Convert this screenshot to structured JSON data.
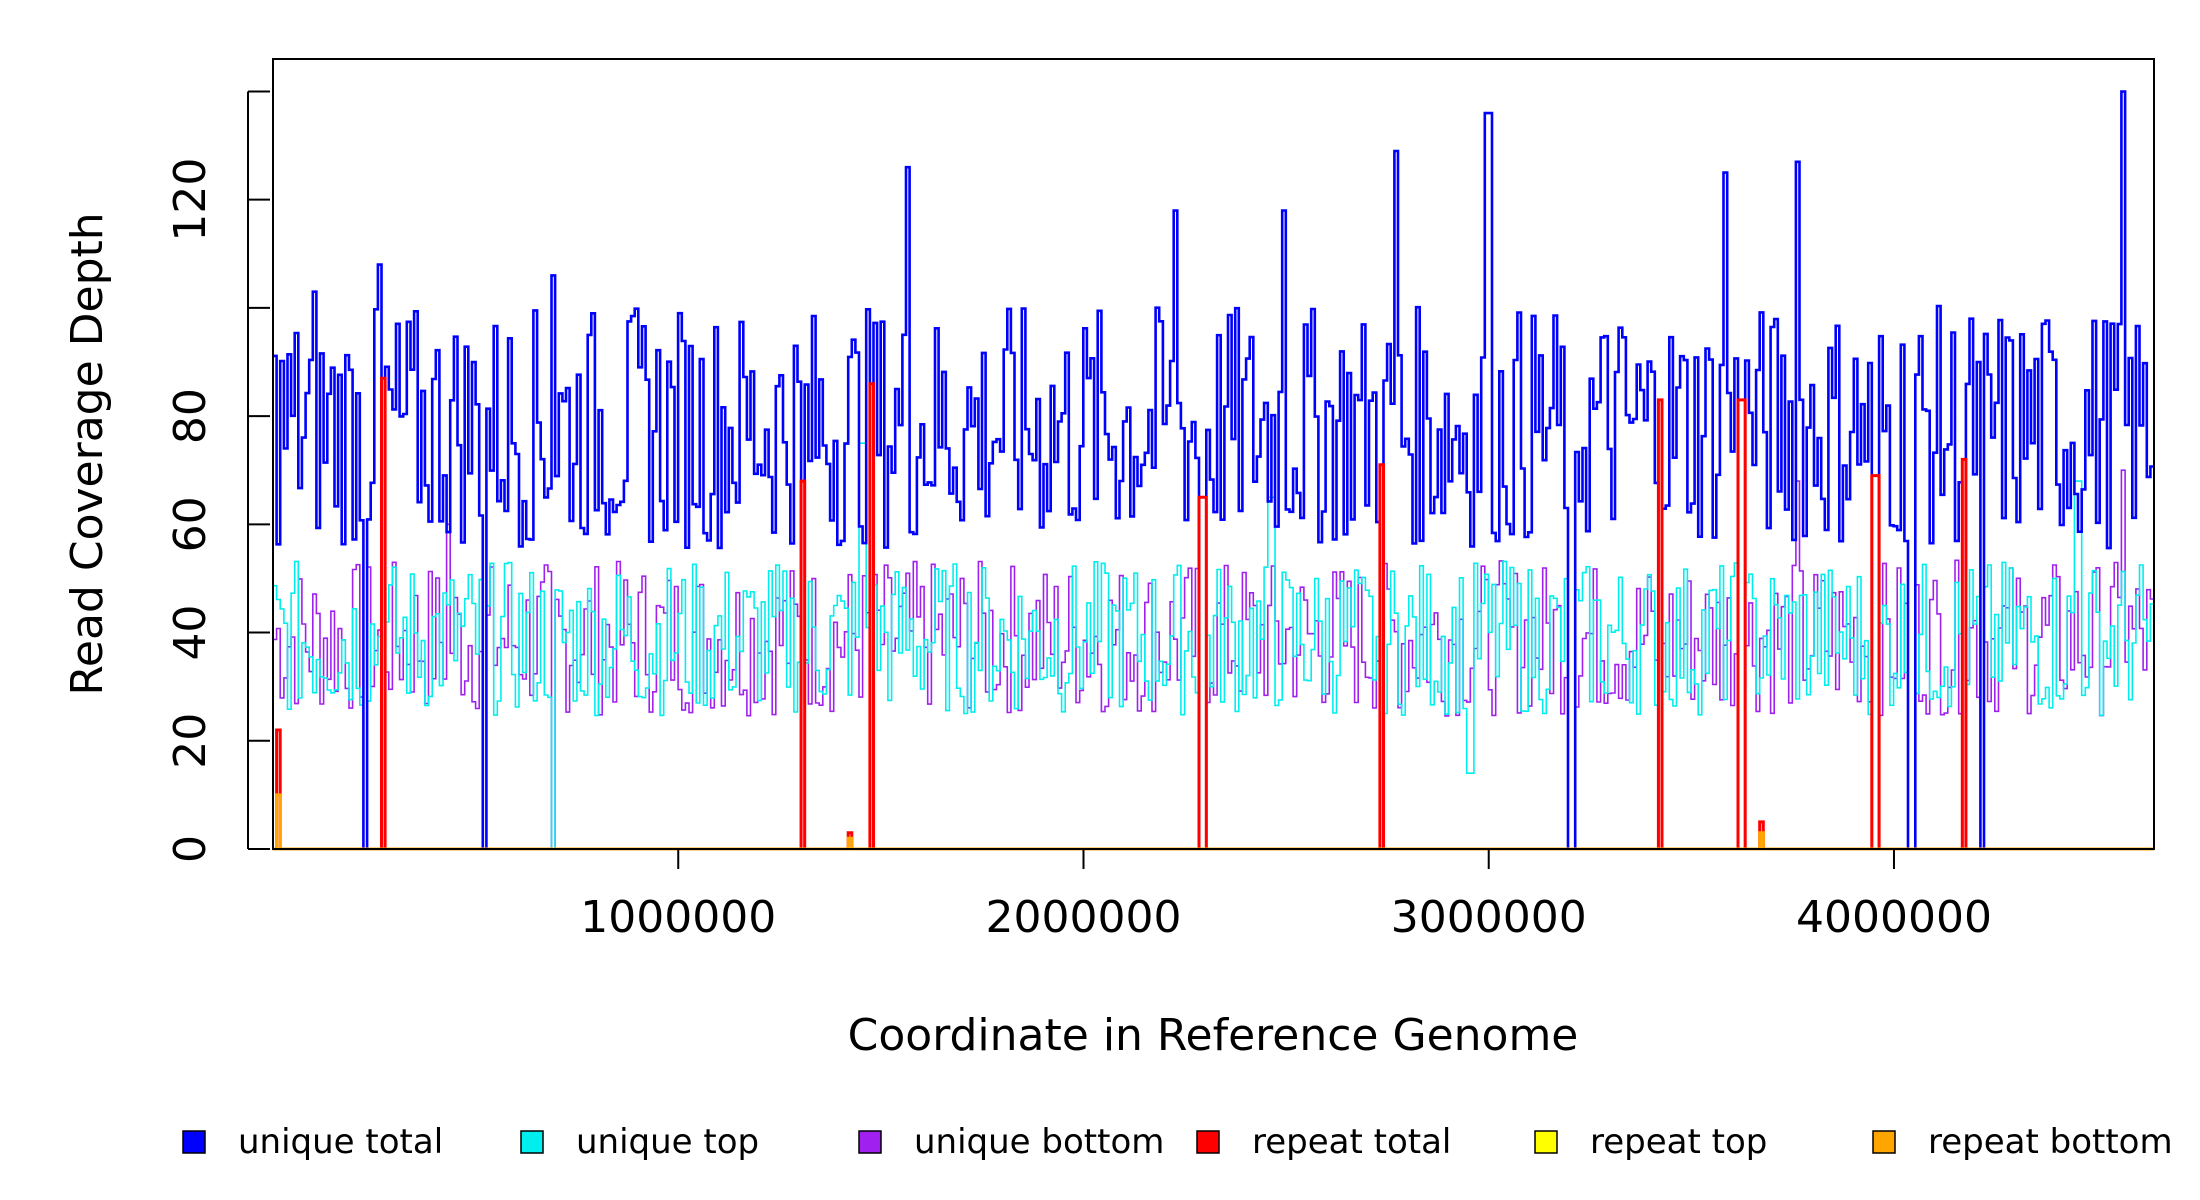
{
  "chart_data": {
    "type": "line",
    "title": "",
    "xlabel": "Coordinate in Reference Genome",
    "ylabel": "Read Coverage Depth",
    "xlim": [
      1,
      4641652
    ],
    "ylim": [
      0,
      140
    ],
    "x_ticks": [
      1000000,
      2000000,
      3000000,
      4000000
    ],
    "x_tick_labels": [
      "1000000",
      "2000000",
      "3000000",
      "4000000"
    ],
    "y_ticks": [
      0,
      20,
      40,
      60,
      80,
      100,
      120,
      140
    ],
    "y_tick_labels": [
      "0",
      "20",
      "40",
      "60",
      "80",
      "",
      "120",
      ""
    ],
    "grid": false,
    "legend_position": "bottom",
    "zero_coverage_x": [
      220000,
      265000,
      520000,
      685000,
      1300000,
      1470000,
      2290000,
      2730000,
      3200000,
      3420000,
      3620000,
      3950000,
      4040000,
      4170000,
      4210000
    ],
    "series": [
      {
        "name": "unique total",
        "color": "#0000ff",
        "mean": 78,
        "spread": 14,
        "spikes": [
          [
            95000,
            103
          ],
          [
            260000,
            108
          ],
          [
            690000,
            106
          ],
          [
            1560000,
            126
          ],
          [
            2220000,
            118
          ],
          [
            2490000,
            118
          ],
          [
            2770000,
            129
          ],
          [
            2995000,
            136
          ],
          [
            3580000,
            125
          ],
          [
            3760000,
            127
          ],
          [
            4560000,
            140
          ],
          [
            4550000,
            97
          ]
        ]
      },
      {
        "name": "unique top",
        "color": "#00eeee",
        "mean": 39,
        "spread": 9,
        "spikes": [
          [
            1450000,
            75
          ],
          [
            2460000,
            65
          ],
          [
            2950000,
            14
          ],
          [
            4450000,
            68
          ]
        ]
      },
      {
        "name": "unique bottom",
        "color": "#a020f0",
        "mean": 39,
        "spread": 9,
        "spikes": [
          [
            430000,
            60
          ],
          [
            3760000,
            68
          ],
          [
            4560000,
            70
          ]
        ]
      },
      {
        "name": "repeat total",
        "color": "#ff0000",
        "mean": 0,
        "spread": 0,
        "spikes": [
          [
            10000,
            22
          ],
          [
            265000,
            87
          ],
          [
            1300000,
            68
          ],
          [
            1420000,
            3
          ],
          [
            1470000,
            86
          ],
          [
            2290000,
            65
          ],
          [
            2730000,
            71
          ],
          [
            3420000,
            83
          ],
          [
            3620000,
            83
          ],
          [
            3670000,
            5
          ],
          [
            3950000,
            69
          ],
          [
            4170000,
            72
          ]
        ]
      },
      {
        "name": "repeat top",
        "color": "#ffff00",
        "mean": 0,
        "spread": 0,
        "spikes": []
      },
      {
        "name": "repeat bottom",
        "color": "#ffa500",
        "mean": 0,
        "spread": 0,
        "spikes": [
          [
            10000,
            10
          ],
          [
            1420000,
            2
          ],
          [
            3670000,
            3
          ]
        ]
      }
    ],
    "legend": [
      {
        "label": "unique total",
        "color": "#0000ff"
      },
      {
        "label": "unique top",
        "color": "#00eeee"
      },
      {
        "label": "unique bottom",
        "color": "#a020f0"
      },
      {
        "label": "repeat total",
        "color": "#ff0000"
      },
      {
        "label": "repeat top",
        "color": "#ffff00"
      },
      {
        "label": "repeat bottom",
        "color": "#ffa500"
      }
    ]
  }
}
